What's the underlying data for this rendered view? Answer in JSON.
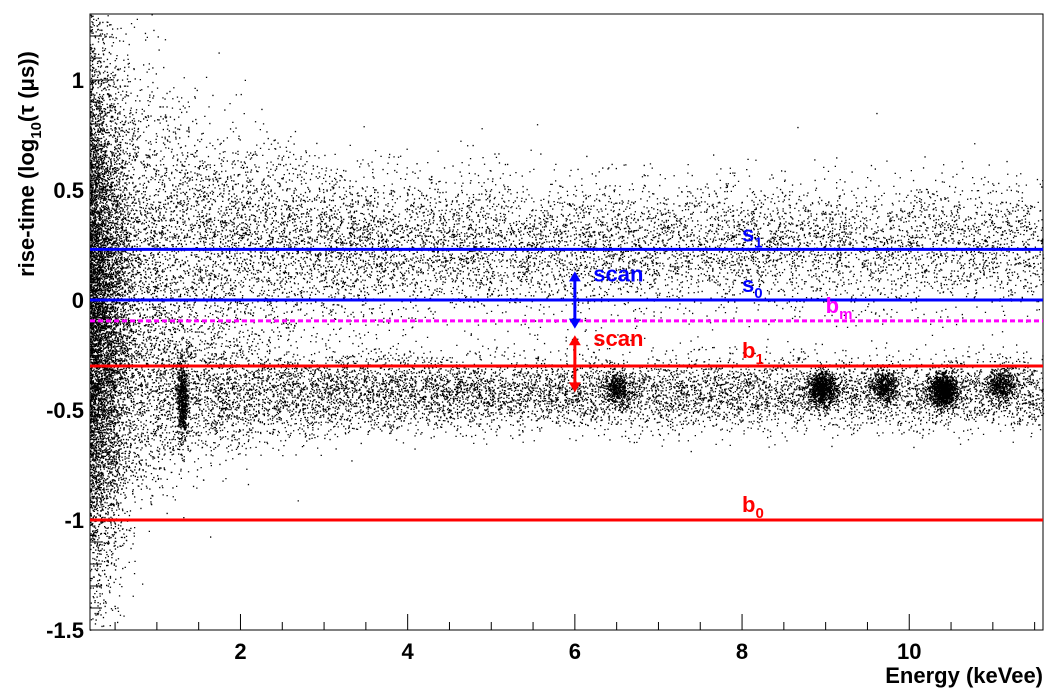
{
  "chart_data": {
    "type": "scatter",
    "title": "",
    "xlabel": "Energy (keVee)",
    "ylabel": "rise-time (log",
    "ylabel_sub": "10",
    "ylabel_suffix": "(τ (μs))",
    "xlim": [
      0.2,
      11.6
    ],
    "ylim": [
      -1.5,
      1.3
    ],
    "x_ticks": [
      2,
      4,
      6,
      8,
      10
    ],
    "x_tick_labels": [
      "2",
      "4",
      "6",
      "8",
      "10"
    ],
    "y_ticks": [
      1,
      0.5,
      0,
      -0.5,
      -1,
      -1.5
    ],
    "y_tick_labels": [
      "1",
      "0.5",
      "0",
      "-0.5",
      "-1",
      "-1.5"
    ],
    "grid": false,
    "horizontal_lines": [
      {
        "label": "s",
        "sub": "1",
        "y": 0.23,
        "color": "#0000ff",
        "style": "solid",
        "label_x": 8.0
      },
      {
        "label": "s",
        "sub": "0",
        "y": 0.0,
        "color": "#0000ff",
        "style": "solid",
        "label_x": 8.0
      },
      {
        "label": "b",
        "sub": "m",
        "y": -0.095,
        "color": "#ff00ff",
        "style": "dashed",
        "label_x": 9.0
      },
      {
        "label": "b",
        "sub": "1",
        "y": -0.3,
        "color": "#ff0000",
        "style": "solid",
        "label_x": 8.0
      },
      {
        "label": "b",
        "sub": "0",
        "y": -1.0,
        "color": "#ff0000",
        "style": "solid",
        "label_x": 8.0
      }
    ],
    "annotations": [
      {
        "text": "scan",
        "x": 6.0,
        "y_from": -0.13,
        "y_to": 0.13,
        "color": "#0000ff",
        "text_x": 6.22,
        "text_y": 0.085
      },
      {
        "text": "scan",
        "x": 6.0,
        "y_from": -0.42,
        "y_to": -0.16,
        "color": "#ff0000",
        "text_x": 6.22,
        "text_y": -0.21
      }
    ],
    "series": [
      {
        "kind": "scatter-density",
        "color": "#000000",
        "bands": [
          {
            "y_center": 0.25,
            "x_start": 0.2,
            "x_end": 11.6,
            "spread": 0.55
          },
          {
            "y_center": -0.42,
            "x_start": 0.2,
            "x_end": 11.6,
            "spread": 0.08
          }
        ],
        "clusters": [
          {
            "x": 1.3,
            "y": -0.45,
            "note": "vertical streak"
          },
          {
            "x": 6.5,
            "y": -0.4
          },
          {
            "x": 8.95,
            "y": -0.4
          },
          {
            "x": 9.7,
            "y": -0.39
          },
          {
            "x": 10.4,
            "y": -0.41
          },
          {
            "x": 11.1,
            "y": -0.38
          }
        ]
      }
    ]
  }
}
